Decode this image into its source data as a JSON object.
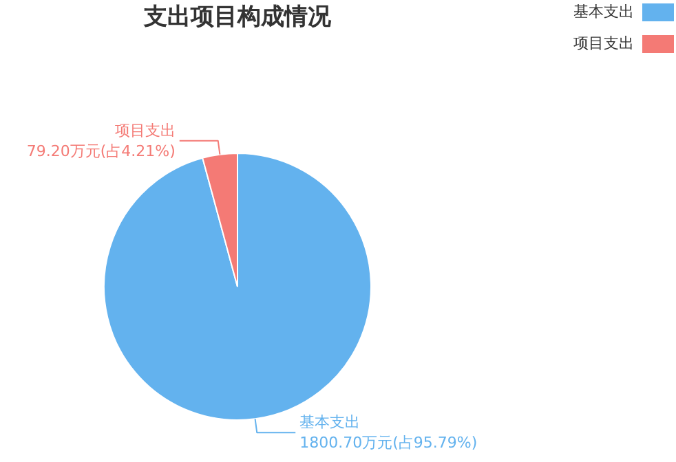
{
  "chart_data": {
    "type": "pie",
    "title": "支出项目构成情况",
    "categories": [
      "基本支出",
      "项目支出"
    ],
    "values": [
      1800.7,
      79.2
    ],
    "colors": [
      "#63b2ee",
      "#f47a75"
    ],
    "value_labels": [
      "1800.70万元(占95.79%)",
      "79.20万元(占4.21%)"
    ],
    "legend": "top right"
  }
}
